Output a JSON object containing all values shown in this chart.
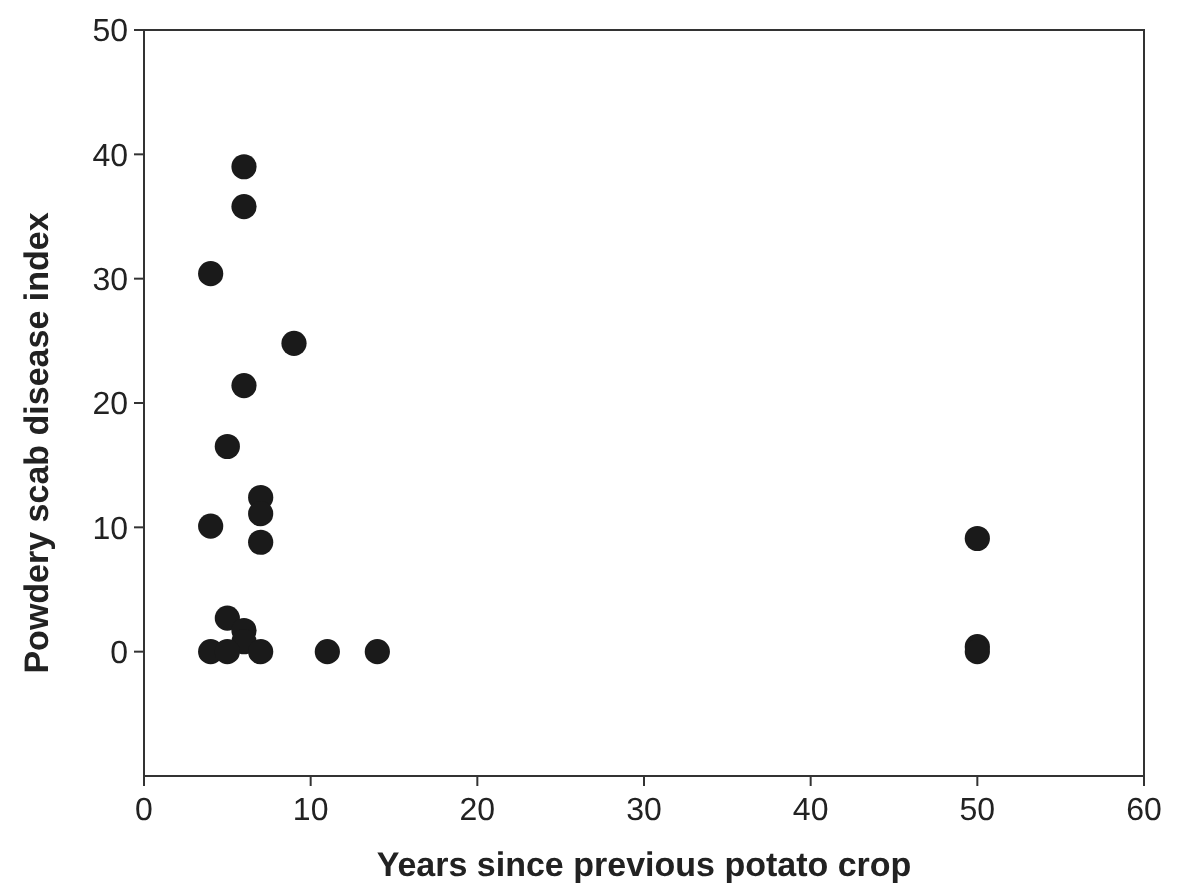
{
  "chart_data": {
    "type": "scatter",
    "xlabel": "Years since previous potato crop",
    "ylabel": "Powdery scab disease index",
    "x": [
      6,
      6,
      4,
      9,
      6,
      5,
      7,
      7,
      4,
      7,
      5,
      6,
      6,
      4,
      5,
      7,
      11,
      14,
      50,
      50,
      50
    ],
    "values": [
      39,
      35.8,
      30.4,
      24.8,
      21.4,
      16.5,
      12.4,
      11.1,
      10.1,
      8.8,
      2.7,
      1.7,
      0.8,
      0,
      0,
      0,
      0,
      0,
      9.1,
      0.4,
      0
    ],
    "color": "#1a1a1a",
    "marker": "circle",
    "xlim": [
      0,
      60
    ],
    "xticks": [
      0,
      10,
      20,
      30,
      40,
      50,
      60
    ],
    "ylim": [
      -10,
      50
    ],
    "yticks": [
      0,
      10,
      20,
      30,
      40,
      50
    ],
    "grid": false
  }
}
